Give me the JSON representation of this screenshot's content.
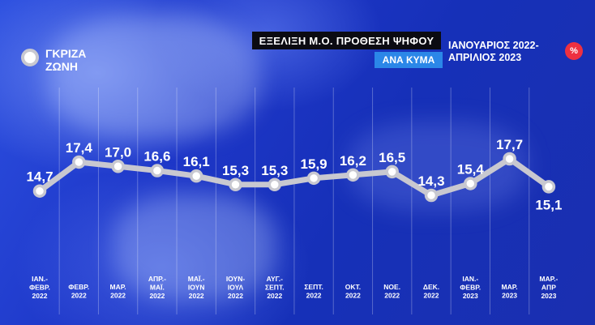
{
  "header": {
    "title": "ΕΞΕΛΙΞΗ Μ.Ο. ΠΡΟΘΕΣΗ ΨΗΦΟΥ",
    "subtitle": "ΑΝΑ ΚΥΜΑ",
    "period_line1": "ΙΑΝΟΥΑΡΙΟΣ 2022-",
    "period_line2": "ΑΠΡΙΛΙΟΣ 2023",
    "unit_badge": "%"
  },
  "legend": {
    "label_line1": "ΓΚΡΙΖΑ",
    "label_line2": "ΖΩΝΗ",
    "marker_color": "#c8c8d0"
  },
  "colors": {
    "line": "#c8c8d0",
    "marker_fill": "#ffffff",
    "background": "#1f3cc4",
    "title_bg": "#0b0b12",
    "subtitle_bg": "#2b87e8",
    "badge": "#ee3040"
  },
  "chart_data": {
    "type": "line",
    "title": "ΕΞΕΛΙΞΗ Μ.Ο. ΠΡΟΘΕΣΗ ΨΗΦΟΥ",
    "subtitle": "ΑΝΑ ΚΥΜΑ",
    "xlabel": "",
    "ylabel": "",
    "grid": true,
    "legend_position": "top-left",
    "categories": [
      [
        "ΙΑΝ.-",
        "ΦΕΒΡ.",
        "2022"
      ],
      [
        "ΦΕΒΡ.",
        "2022"
      ],
      [
        "ΜΑΡ.",
        "2022"
      ],
      [
        "ΑΠΡ.-",
        "ΜΑΪ.",
        "2022"
      ],
      [
        "ΜΑΪ.-",
        "ΙΟΥΝ",
        "2022"
      ],
      [
        "ΙΟΥΝ-",
        "ΙΟΥΛ",
        "2022"
      ],
      [
        "ΑΥΓ.-",
        "ΣΕΠΤ.",
        "2022"
      ],
      [
        "ΣΕΠΤ.",
        "2022"
      ],
      [
        "ΟΚΤ.",
        "2022"
      ],
      [
        "ΝΟΕ.",
        "2022"
      ],
      [
        "ΔΕΚ.",
        "2022"
      ],
      [
        "ΙΑΝ.-",
        "ΦΕΒΡ.",
        "2023"
      ],
      [
        "ΜΑΡ.",
        "2023"
      ],
      [
        "ΜΑΡ.-",
        "ΑΠΡ",
        "2023"
      ]
    ],
    "series": [
      {
        "name": "ΓΚΡΙΖΑ ΖΩΝΗ",
        "values": [
          14.7,
          17.4,
          17.0,
          16.6,
          16.1,
          15.3,
          15.3,
          15.9,
          16.2,
          16.5,
          14.3,
          15.4,
          17.7,
          15.1
        ],
        "labels": [
          "14,7",
          "17,4",
          "17,0",
          "16,6",
          "16,1",
          "15,3",
          "15,3",
          "15,9",
          "16,2",
          "16,5",
          "14,3",
          "15,4",
          "17,7",
          "15,1"
        ]
      }
    ]
  }
}
